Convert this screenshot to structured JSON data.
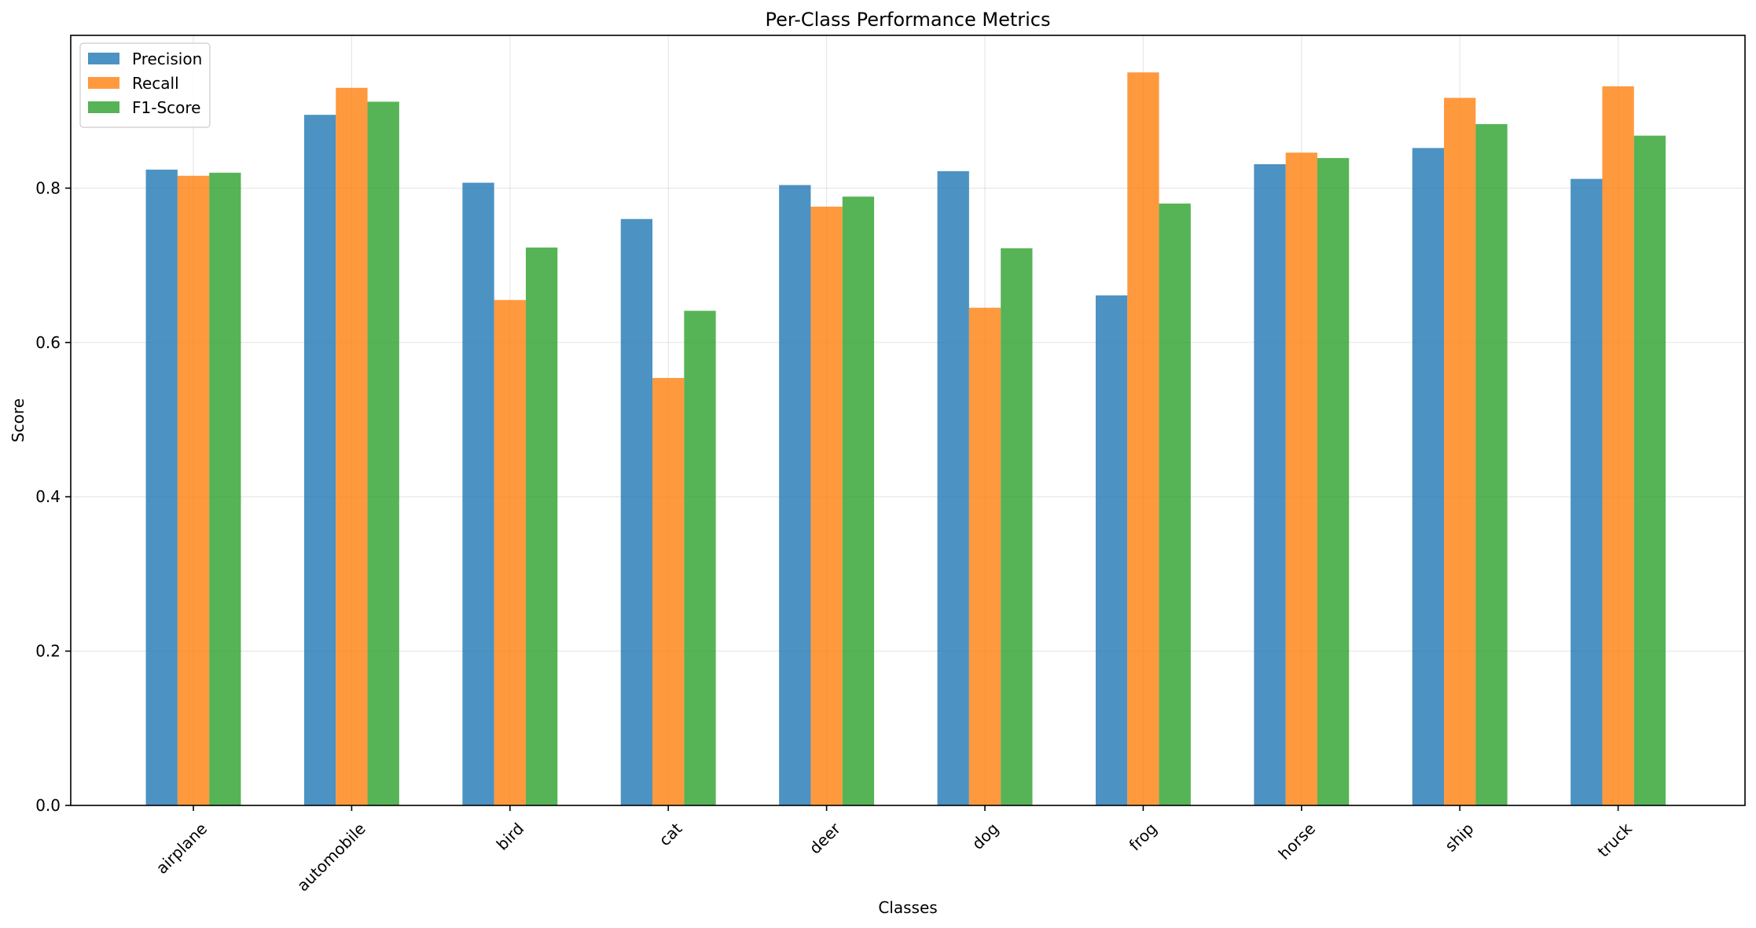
{
  "chart_data": {
    "type": "bar",
    "title": "Per-Class Performance Metrics",
    "xlabel": "Classes",
    "ylabel": "Score",
    "categories": [
      "airplane",
      "automobile",
      "bird",
      "cat",
      "deer",
      "dog",
      "frog",
      "horse",
      "ship",
      "truck"
    ],
    "series": [
      {
        "name": "Precision",
        "color": "#1f77b4",
        "values": [
          0.824,
          0.895,
          0.807,
          0.76,
          0.804,
          0.822,
          0.661,
          0.831,
          0.852,
          0.812
        ]
      },
      {
        "name": "Recall",
        "color": "#ff7f0e",
        "values": [
          0.816,
          0.93,
          0.655,
          0.554,
          0.776,
          0.645,
          0.95,
          0.846,
          0.917,
          0.932
        ]
      },
      {
        "name": "F1-Score",
        "color": "#2ca02c",
        "values": [
          0.82,
          0.912,
          0.723,
          0.641,
          0.789,
          0.722,
          0.78,
          0.839,
          0.883,
          0.868
        ]
      }
    ],
    "ylim": [
      0,
      0.998
    ],
    "yticks": [
      "0.0",
      "0.2",
      "0.4",
      "0.6",
      "0.8"
    ],
    "yticks_values": [
      0.0,
      0.2,
      0.4,
      0.6,
      0.8
    ],
    "grid": true,
    "legend_position": "top-left",
    "bar_opacity": 0.8
  }
}
